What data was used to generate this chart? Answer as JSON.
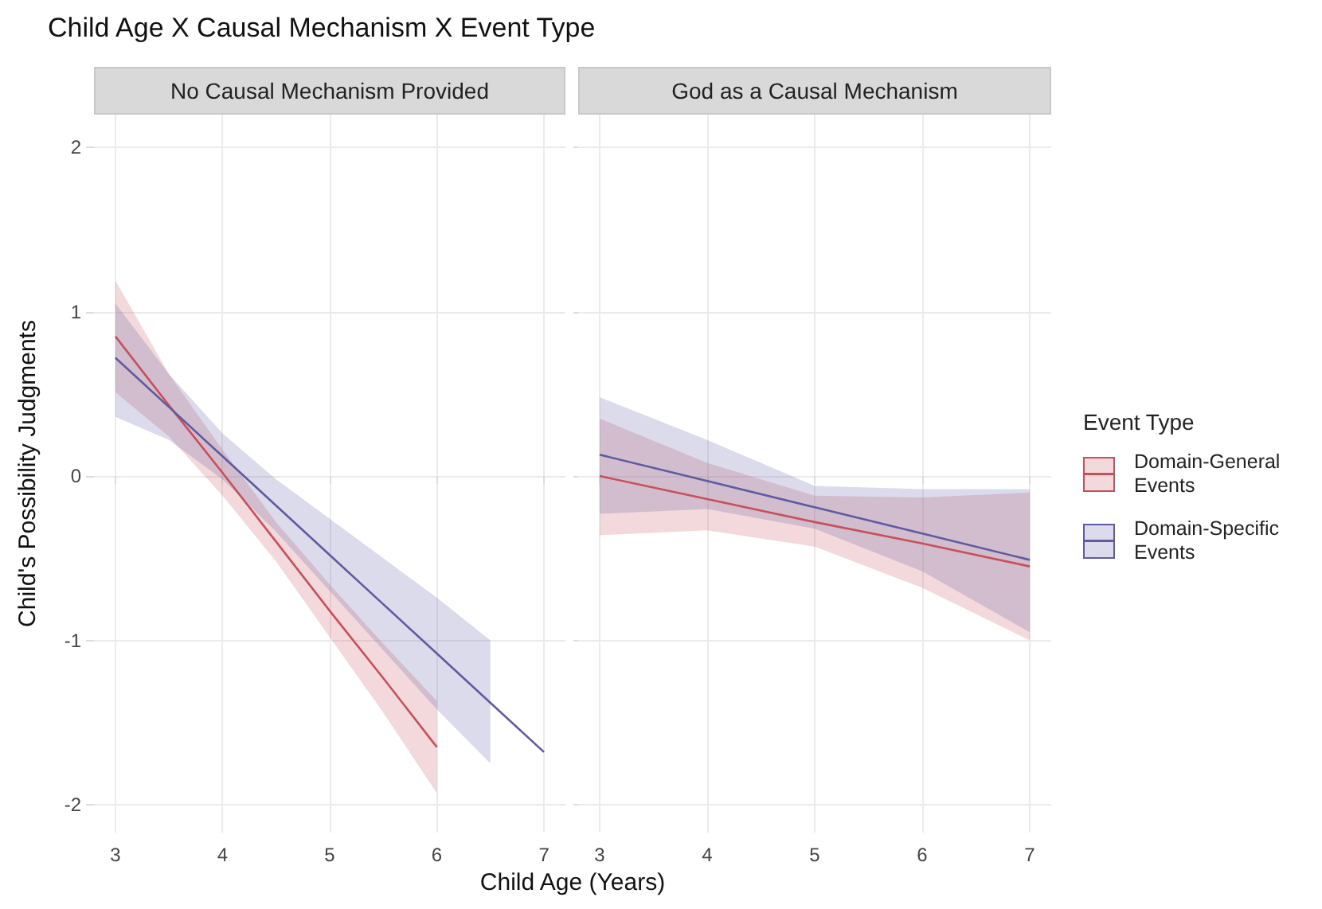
{
  "chart_data": [
    {
      "type": "line",
      "title": "Child Age X Causal Mechanism X Event Type",
      "subtitle": "No Causal Mechanism Provided",
      "xlabel": "Child Age (Years)",
      "ylabel": "Child's Possibility Judgments",
      "xlim": [
        2.8,
        7.2
      ],
      "xticks": [
        3,
        4,
        5,
        6,
        7
      ],
      "ylim": [
        -2.17,
        2.2
      ],
      "yticks": [
        -2,
        -1,
        0,
        1,
        2
      ],
      "grid": true,
      "marker": "none",
      "legend": false,
      "series": [
        {
          "color": "#c8505a",
          "x": [
            3,
            3.5,
            4,
            4.5,
            5,
            5.5,
            6
          ],
          "values": [
            0.85,
            0.43,
            0.02,
            -0.4,
            -0.82,
            -1.23,
            -1.65
          ],
          "lower": [
            0.51,
            0.24,
            -0.12,
            -0.52,
            -0.98,
            -1.44,
            -1.93
          ],
          "upper": [
            1.19,
            0.62,
            0.16,
            -0.28,
            -0.66,
            -1.02,
            -1.37
          ]
        },
        {
          "color": "#5f5aa2",
          "x": [
            3,
            3.5,
            4,
            4.5,
            5,
            5.5,
            6,
            6.5,
            7
          ],
          "values": [
            0.72,
            0.42,
            0.12,
            -0.18,
            -0.48,
            -0.78,
            -1.08,
            -1.38,
            -1.68
          ],
          "lower": [
            0.36,
            0.22,
            -0.02,
            -0.34,
            -0.7,
            -1.06,
            -1.42,
            -1.75,
            null
          ],
          "upper": [
            1.05,
            0.62,
            0.26,
            -0.02,
            -0.26,
            -0.5,
            -0.74,
            -1.0,
            null
          ]
        }
      ]
    },
    {
      "type": "line",
      "subtitle": "God as a Causal Mechanism",
      "legend_title": "Event Type",
      "legend": "right",
      "xlim": [
        2.8,
        7.2
      ],
      "xticks": [
        3,
        4,
        5,
        6,
        7
      ],
      "ylim": [
        -2.17,
        2.2
      ],
      "yticks": [
        -2,
        -1,
        0,
        1,
        2
      ],
      "grid": true,
      "marker": "none",
      "tick_labels": "x",
      "series": [
        {
          "name": "Domain-General Events",
          "color": "#c8505a",
          "x": [
            3,
            4,
            5,
            6,
            7
          ],
          "values": [
            0,
            -0.14,
            -0.28,
            -0.41,
            -0.55
          ],
          "lower": [
            -0.36,
            -0.33,
            -0.43,
            -0.68,
            -1.0
          ],
          "upper": [
            0.35,
            0.08,
            -0.12,
            -0.13,
            -0.1
          ]
        },
        {
          "name": "Domain-Specific Events",
          "color": "#5f5aa2",
          "x": [
            3,
            4,
            5,
            6,
            7
          ],
          "values": [
            0.13,
            -0.03,
            -0.19,
            -0.35,
            -0.51
          ],
          "lower": [
            -0.23,
            -0.2,
            -0.32,
            -0.58,
            -0.95
          ],
          "upper": [
            0.48,
            0.22,
            -0.06,
            -0.08,
            -0.08
          ]
        }
      ]
    }
  ]
}
